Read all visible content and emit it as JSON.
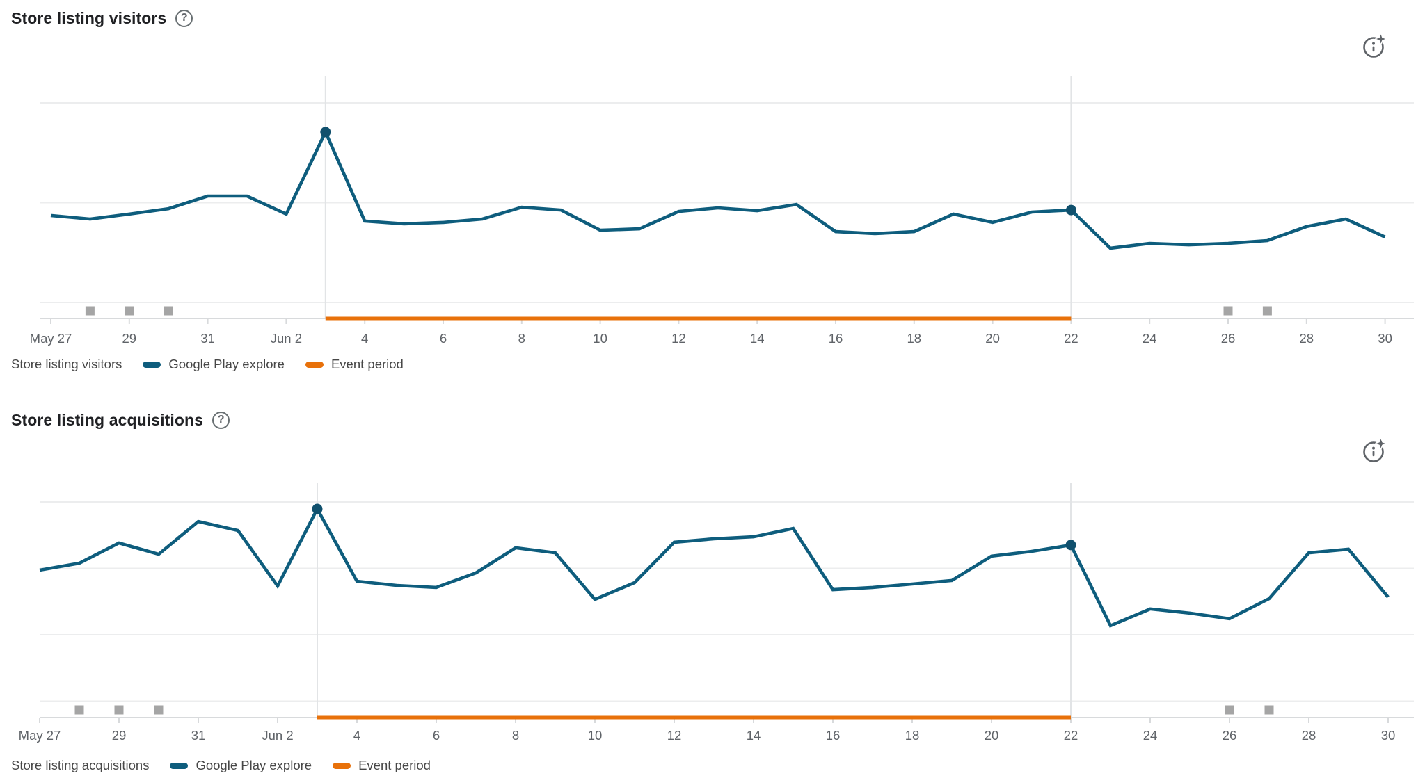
{
  "colors": {
    "series_blue": "#0e5d7d",
    "marker_dot": "#10506d",
    "event_orange": "#e8710a",
    "gridline": "#ecedee",
    "event_boundary_line": "#e2e4e6",
    "axis_line": "#d8dadc",
    "axis_label": "#5f6368",
    "annotation_square": "#a5a5a5",
    "title_text": "#202124",
    "legend_text": "#474747",
    "icon_gray": "#5f6368",
    "background": "#ffffff"
  },
  "charts": [
    {
      "title": "Store listing visitors",
      "help_icon": "question-mark-circle",
      "insights_icon": "info-sparkle-circle",
      "legend": {
        "series_name": "Store listing visitors",
        "items": [
          {
            "label": "Google Play explore",
            "color": "#0e5d7d"
          },
          {
            "label": "Event period",
            "color": "#e8710a"
          }
        ]
      }
    },
    {
      "title": "Store listing acquisitions",
      "help_icon": "question-mark-circle",
      "insights_icon": "info-sparkle-circle",
      "legend": {
        "series_name": "Store listing acquisitions",
        "items": [
          {
            "label": "Google Play explore",
            "color": "#0e5d7d"
          },
          {
            "label": "Event period",
            "color": "#e8710a"
          }
        ]
      }
    }
  ],
  "chart_data": [
    {
      "type": "line",
      "title": "Store listing visitors",
      "units": "relative (0-100% of plot height; y-axis is unlabeled in the UI)",
      "ylim": [
        0,
        100
      ],
      "grid": "horizontal",
      "legend_position": "bottom",
      "x": [
        "May 27",
        "May 28",
        "May 29",
        "May 30",
        "May 31",
        "Jun 1",
        "Jun 2",
        "Jun 3",
        "Jun 4",
        "Jun 5",
        "Jun 6",
        "Jun 7",
        "Jun 8",
        "Jun 9",
        "Jun 10",
        "Jun 11",
        "Jun 12",
        "Jun 13",
        "Jun 14",
        "Jun 15",
        "Jun 16",
        "Jun 17",
        "Jun 18",
        "Jun 19",
        "Jun 20",
        "Jun 21",
        "Jun 22",
        "Jun 23",
        "Jun 24",
        "Jun 25",
        "Jun 26",
        "Jun 27",
        "Jun 28",
        "Jun 29",
        "Jun 30"
      ],
      "series": [
        {
          "name": "Google Play explore",
          "values": [
            43.6,
            41.8,
            44.3,
            47.0,
            53.3,
            53.3,
            44.3,
            85.4,
            40.8,
            39.4,
            40.1,
            41.8,
            47.7,
            46.3,
            36.2,
            36.9,
            45.6,
            47.4,
            46.0,
            49.1,
            35.5,
            34.5,
            35.5,
            44.3,
            40.1,
            45.3,
            46.3,
            27.2,
            29.6,
            28.9,
            29.6,
            31.0,
            38.0,
            41.8,
            32.8
          ]
        }
      ],
      "ticks": [
        {
          "index": 0,
          "label": "May 27"
        },
        {
          "index": 2,
          "label": "29"
        },
        {
          "index": 4,
          "label": "31"
        },
        {
          "index": 6,
          "label": "Jun 2"
        },
        {
          "index": 8,
          "label": "4"
        },
        {
          "index": 10,
          "label": "6"
        },
        {
          "index": 12,
          "label": "8"
        },
        {
          "index": 14,
          "label": "10"
        },
        {
          "index": 16,
          "label": "12"
        },
        {
          "index": 18,
          "label": "14"
        },
        {
          "index": 20,
          "label": "16"
        },
        {
          "index": 22,
          "label": "18"
        },
        {
          "index": 24,
          "label": "20"
        },
        {
          "index": 26,
          "label": "22"
        },
        {
          "index": 28,
          "label": "24"
        },
        {
          "index": 30,
          "label": "26"
        },
        {
          "index": 32,
          "label": "28"
        },
        {
          "index": 34,
          "label": "30"
        }
      ],
      "marker_indices": [
        7,
        26
      ],
      "marker_dates": [
        "Jun 3",
        "Jun 22"
      ],
      "event_period": {
        "label": "Event period",
        "start": "Jun 3",
        "end": "Jun 22",
        "start_index": 7,
        "end_index": 26,
        "color": "#e8710a"
      },
      "annotation_squares": {
        "dates": [
          "May 28",
          "May 29",
          "May 30",
          "Jun 26",
          "Jun 27"
        ],
        "indices": [
          1,
          2,
          3,
          30,
          31
        ]
      }
    },
    {
      "type": "line",
      "title": "Store listing acquisitions",
      "units": "relative (0-100% of plot height; y-axis is unlabeled in the UI)",
      "ylim": [
        0,
        100
      ],
      "grid": "horizontal",
      "legend_position": "bottom",
      "x": [
        "May 27",
        "May 28",
        "May 29",
        "May 30",
        "May 31",
        "Jun 1",
        "Jun 2",
        "Jun 3",
        "Jun 4",
        "Jun 5",
        "Jun 6",
        "Jun 7",
        "Jun 8",
        "Jun 9",
        "Jun 10",
        "Jun 11",
        "Jun 12",
        "Jun 13",
        "Jun 14",
        "Jun 15",
        "Jun 16",
        "Jun 17",
        "Jun 18",
        "Jun 19",
        "Jun 20",
        "Jun 21",
        "Jun 22",
        "Jun 23",
        "Jun 24",
        "Jun 25",
        "Jun 26",
        "Jun 27",
        "Jun 28",
        "Jun 29",
        "Jun 30"
      ],
      "series": [
        {
          "name": "Google Play explore",
          "values": [
            65.8,
            69.3,
            79.4,
            73.8,
            90.2,
            85.7,
            57.8,
            96.5,
            60.2,
            58.1,
            57.1,
            64.4,
            77.0,
            74.5,
            51.1,
            59.5,
            79.8,
            81.5,
            82.5,
            86.7,
            56.0,
            57.1,
            58.8,
            60.6,
            72.8,
            75.2,
            78.4,
            37.9,
            46.3,
            44.2,
            41.4,
            51.5,
            74.5,
            76.3,
            52.2
          ]
        }
      ],
      "ticks": [
        {
          "index": 0,
          "label": "May 27"
        },
        {
          "index": 2,
          "label": "29"
        },
        {
          "index": 4,
          "label": "31"
        },
        {
          "index": 6,
          "label": "Jun 2"
        },
        {
          "index": 8,
          "label": "4"
        },
        {
          "index": 10,
          "label": "6"
        },
        {
          "index": 12,
          "label": "8"
        },
        {
          "index": 14,
          "label": "10"
        },
        {
          "index": 16,
          "label": "12"
        },
        {
          "index": 18,
          "label": "14"
        },
        {
          "index": 20,
          "label": "16"
        },
        {
          "index": 22,
          "label": "18"
        },
        {
          "index": 24,
          "label": "20"
        },
        {
          "index": 26,
          "label": "22"
        },
        {
          "index": 28,
          "label": "24"
        },
        {
          "index": 30,
          "label": "26"
        },
        {
          "index": 32,
          "label": "28"
        },
        {
          "index": 34,
          "label": "30"
        }
      ],
      "marker_indices": [
        7,
        26
      ],
      "marker_dates": [
        "Jun 3",
        "Jun 22"
      ],
      "event_period": {
        "label": "Event period",
        "start": "Jun 3",
        "end": "Jun 22",
        "start_index": 7,
        "end_index": 26,
        "color": "#e8710a"
      },
      "annotation_squares": {
        "dates": [
          "May 28",
          "May 29",
          "May 30",
          "Jun 26",
          "Jun 27"
        ],
        "indices": [
          1,
          2,
          3,
          30,
          31
        ]
      }
    }
  ]
}
